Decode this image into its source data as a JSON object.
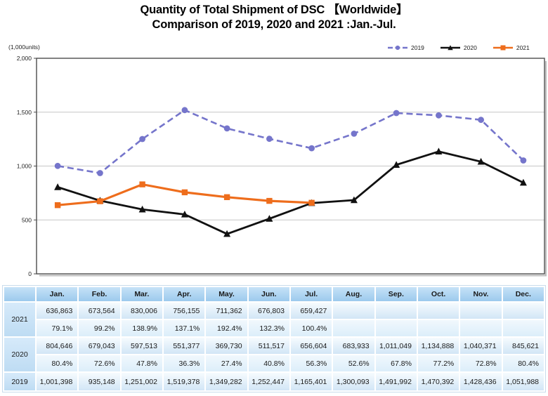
{
  "title": {
    "line1": "Quantity of Total Shipment of DSC 【Worldwide】",
    "line2": "Comparison of 2019, 2020 and 2021 :Jan.-Jul."
  },
  "chart_data": {
    "type": "line",
    "units_label": "(1,000units)",
    "categories": [
      "Jan.",
      "Feb.",
      "Mar.",
      "Apr.",
      "May.",
      "Jun.",
      "Jul.",
      "Aug.",
      "Sep.",
      "Oct.",
      "Nov.",
      "Dec."
    ],
    "ylim": [
      0,
      2000
    ],
    "yticks": [
      0,
      500,
      1000,
      1500,
      2000
    ],
    "grid": true,
    "legend_position": "top-right",
    "series": [
      {
        "name": "2019",
        "color": "#7575CB",
        "style": "dashed",
        "marker": "circle",
        "values": [
          1001.398,
          935.148,
          1251.002,
          1519.378,
          1349.282,
          1252.447,
          1165.401,
          1300.093,
          1491.992,
          1470.392,
          1428.436,
          1051.988
        ]
      },
      {
        "name": "2020",
        "color": "#111111",
        "style": "solid",
        "marker": "triangle",
        "values": [
          804.646,
          679.043,
          597.513,
          551.377,
          369.73,
          511.517,
          656.604,
          683.933,
          1011.049,
          1134.888,
          1040.371,
          845.621
        ]
      },
      {
        "name": "2021",
        "color": "#EE6D1C",
        "style": "solid",
        "marker": "square",
        "values": [
          636.863,
          673.564,
          830.006,
          756.155,
          711.362,
          676.803,
          659.427
        ]
      }
    ]
  },
  "table": {
    "col_header": [
      "Jan.",
      "Feb.",
      "Mar.",
      "Apr.",
      "May.",
      "Jun.",
      "Jul.",
      "Aug.",
      "Sep.",
      "Oct.",
      "Nov.",
      "Dec."
    ],
    "rows": [
      {
        "year": "2021",
        "values": [
          "636,863",
          "673,564",
          "830,006",
          "756,155",
          "711,362",
          "676,803",
          "659,427",
          "",
          "",
          "",
          "",
          ""
        ],
        "percent": [
          "79.1%",
          "99.2%",
          "138.9%",
          "137.1%",
          "192.4%",
          "132.3%",
          "100.4%",
          "",
          "",
          "",
          "",
          ""
        ]
      },
      {
        "year": "2020",
        "values": [
          "804,646",
          "679,043",
          "597,513",
          "551,377",
          "369,730",
          "511,517",
          "656,604",
          "683,933",
          "1,011,049",
          "1,134,888",
          "1,040,371",
          "845,621"
        ],
        "percent": [
          "80.4%",
          "72.6%",
          "47.8%",
          "36.3%",
          "27.4%",
          "40.8%",
          "56.3%",
          "52.6%",
          "67.8%",
          "77.2%",
          "72.8%",
          "80.4%"
        ]
      },
      {
        "year": "2019",
        "values": [
          "1,001,398",
          "935,148",
          "1,251,002",
          "1,519,378",
          "1,349,282",
          "1,252,447",
          "1,165,401",
          "1,300,093",
          "1,491,992",
          "1,470,392",
          "1,428,436",
          "1,051,988"
        ]
      }
    ]
  }
}
